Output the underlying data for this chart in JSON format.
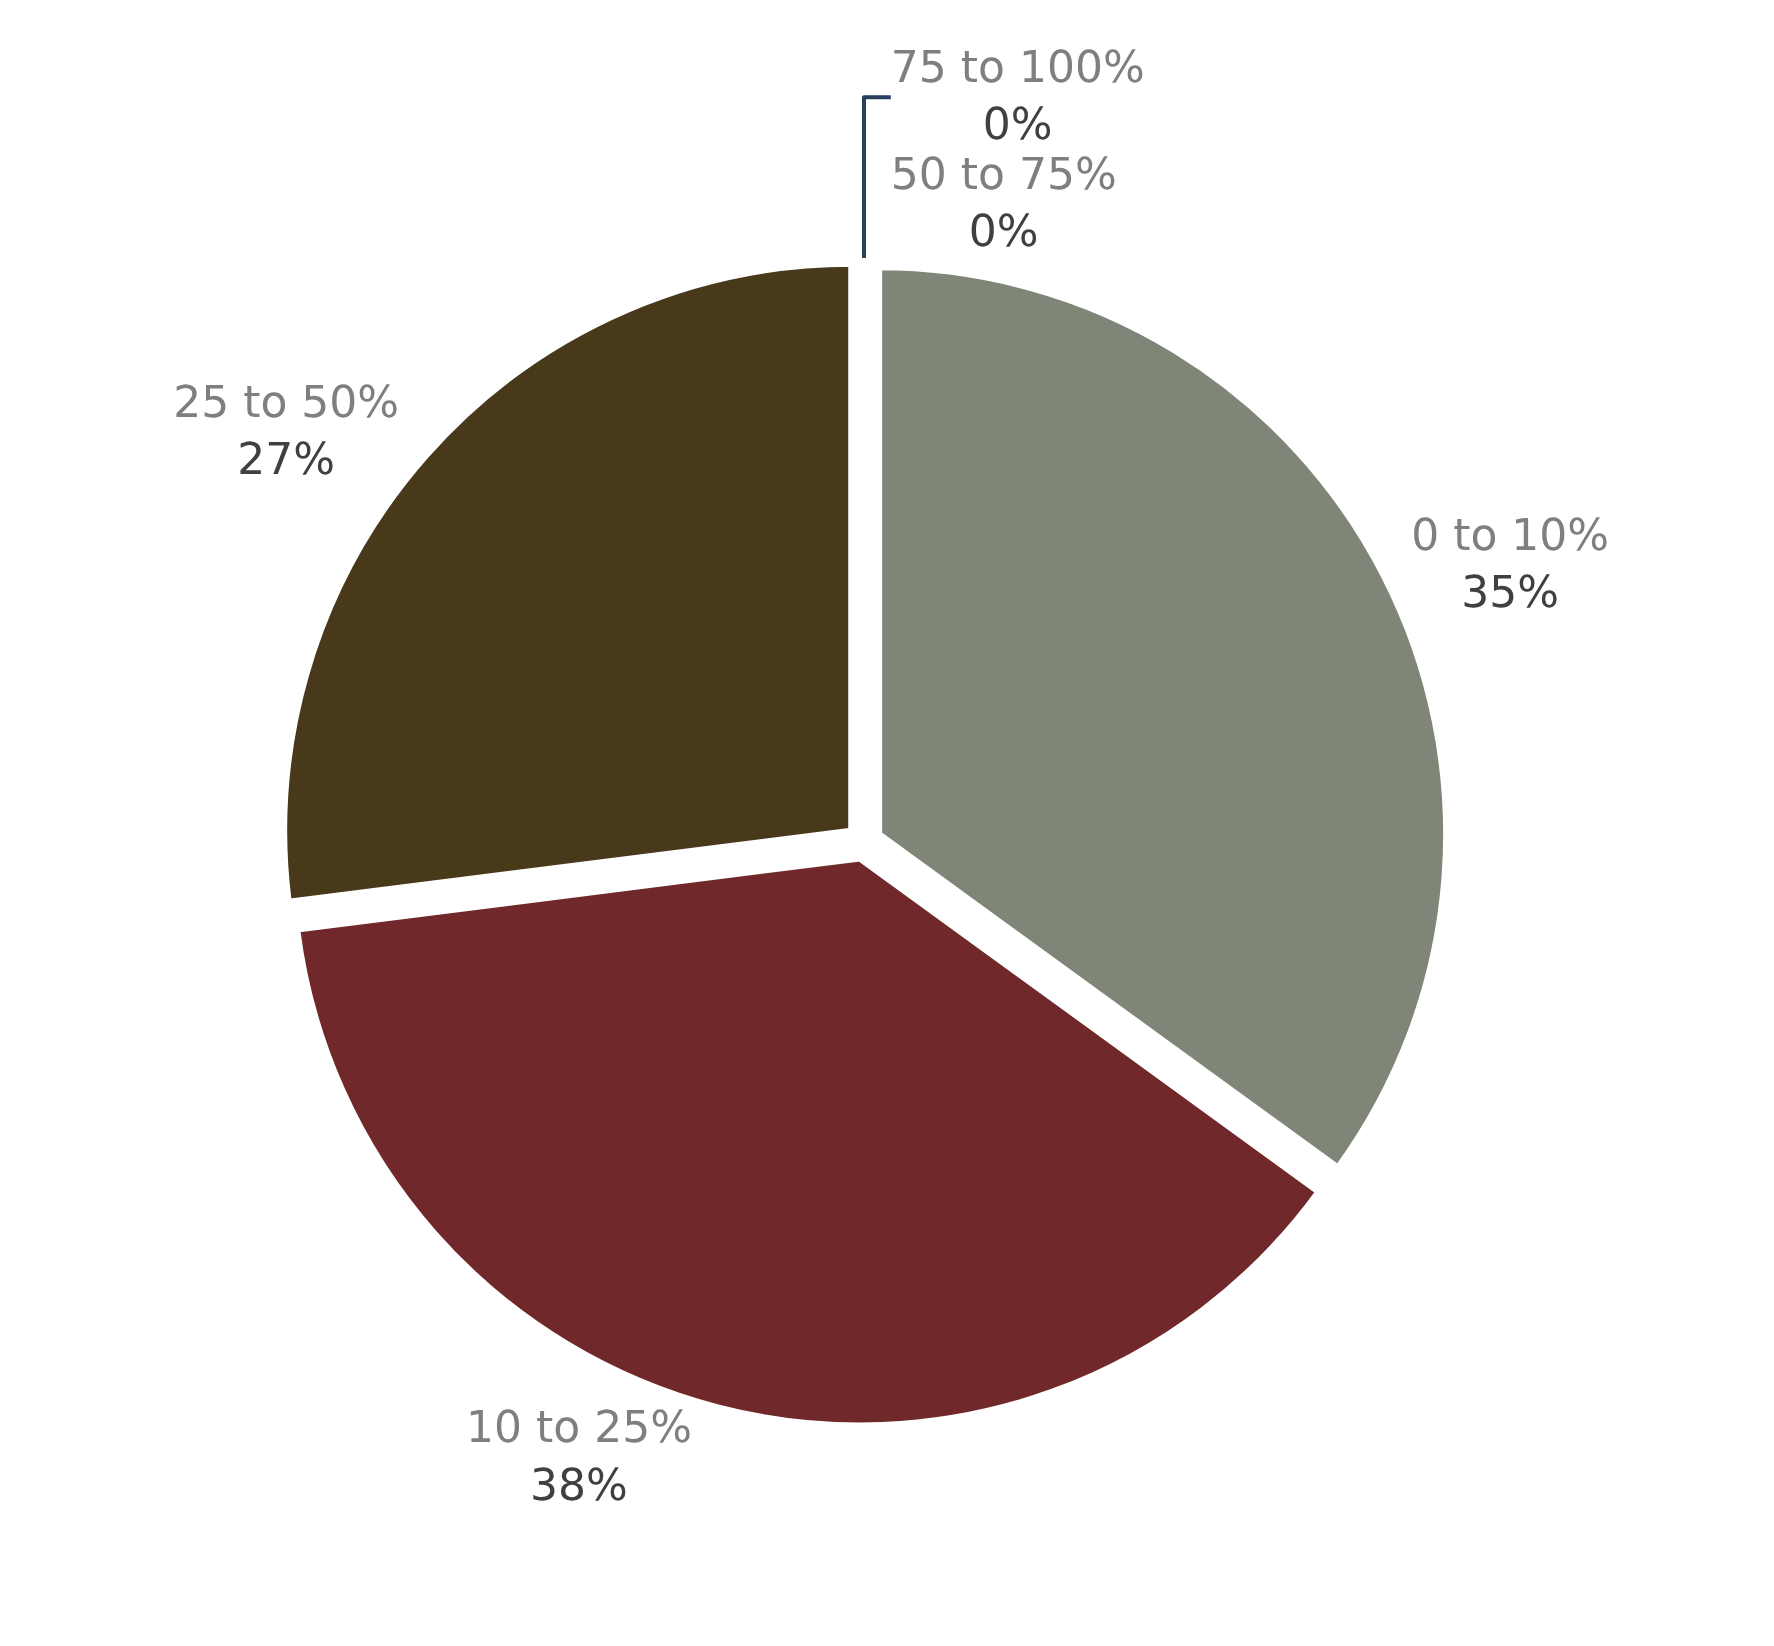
{
  "chart_data": {
    "type": "pie",
    "categories": [
      "0 to 10%",
      "10 to 25%",
      "25 to 50%",
      "50 to 75%",
      "75 to 100%"
    ],
    "values": [
      35,
      38,
      27,
      0,
      0
    ],
    "value_labels": [
      "35%",
      "38%",
      "27%",
      "0%",
      "0%"
    ],
    "colors": [
      "#7f8677",
      "#70282a",
      "#48391b",
      "#9a8f6a",
      "#c8c1a8"
    ],
    "legend": false
  }
}
